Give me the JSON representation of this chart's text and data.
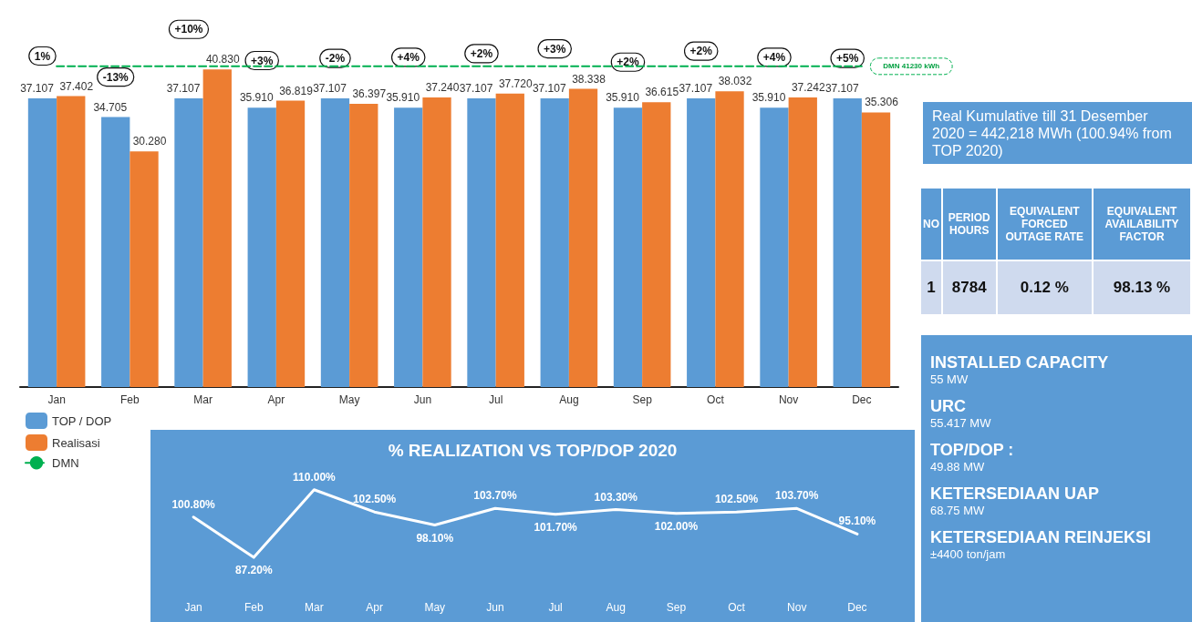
{
  "chart_data": [
    {
      "type": "bar",
      "categories": [
        "Jan",
        "Feb",
        "Mar",
        "Apr",
        "May",
        "Jun",
        "Jul",
        "Aug",
        "Sep",
        "Oct",
        "Nov",
        "Dec"
      ],
      "series": [
        {
          "name": "TOP / DOP",
          "color": "#5b9bd5",
          "values": [
            37.107,
            34.705,
            37.107,
            35.91,
            37.107,
            35.91,
            37.107,
            37.107,
            35.91,
            37.107,
            35.91,
            37.107
          ],
          "value_labels": [
            "37.107",
            "34.705",
            "37.107",
            "35.910",
            "37.107",
            "35.910",
            "37.107",
            "37.107",
            "35.910",
            "37.107",
            "35.910",
            "37.107"
          ]
        },
        {
          "name": "Realisasi",
          "color": "#ed7d31",
          "values": [
            37.402,
            30.28,
            40.83,
            36.819,
            36.397,
            37.24,
            37.72,
            38.338,
            36.615,
            38.032,
            37.242,
            35.306
          ],
          "value_labels": [
            "37.402",
            "30.280",
            "40.830",
            "36.819",
            "36.397",
            "37.240",
            "37.720",
            "38.338",
            "36.615",
            "38.032",
            "37.242",
            "35.306"
          ]
        },
        {
          "name": "DMN",
          "type": "line",
          "color": "#00b050",
          "line_style": "dashed",
          "marker": "none",
          "values": [
            41.23,
            41.23,
            41.23,
            41.23,
            41.23,
            41.23,
            41.23,
            41.23,
            41.23,
            41.23,
            41.23,
            41.23
          ]
        }
      ],
      "annotations": [
        "1%",
        "-13%",
        "+10%",
        "+3%",
        "-2%",
        "+4%",
        "+2%",
        "+3%",
        "+2%",
        "+2%",
        "+4%",
        "+5%",
        {
          "text": "DMN 41230 kWh",
          "x": "Dec",
          "y": 41.23
        }
      ],
      "legend": "bottom left",
      "grid": false,
      "tick_labels": "x"
    },
    {
      "type": "line",
      "title": "% REALIZATION VS TOP/DOP 2020",
      "categories": [
        "Jan",
        "Feb",
        "Mar",
        "Apr",
        "May",
        "Jun",
        "Jul",
        "Aug",
        "Sep",
        "Oct",
        "Nov",
        "Dec"
      ],
      "series": [
        {
          "color": "#ffffff",
          "values": [
            100.8,
            87.2,
            110,
            102.5,
            98.1,
            103.7,
            101.7,
            103.3,
            102,
            102.5,
            103.7,
            95.1
          ],
          "value_labels": [
            "100.80%",
            "87.20%",
            "110.00%",
            "102.50%",
            "98.10%",
            "103.70%",
            "101.70%",
            "103.30%",
            "102.00%",
            "102.50%",
            "103.70%",
            "95.10%"
          ]
        }
      ],
      "marker": "none",
      "grid": false,
      "tick_labels": "x"
    },
    {
      "type": "other",
      "annotations": [
        "Real Kumulative till  31 Desember 2020 = 442,218 MWh (100.94%  from TOP 2020)"
      ]
    },
    {
      "type": "other",
      "categories": [
        "NO",
        "PERIOD HOURS",
        "EQUIVALENT FORCED OUTAGE RATE",
        "EQUIVALENT AVAILABILITY FACTOR"
      ],
      "cell_labels": [
        [
          "1",
          "8784",
          "0.12 %",
          "98.13 %"
        ]
      ]
    },
    {
      "type": "other",
      "annotations": [
        "INSTALLED CAPACITY",
        "55 MW",
        "URC",
        "55.417 MW",
        "TOP/DOP :",
        "49.88 MW",
        "KETERSEDIAAN UAP",
        "68.75 MW",
        "KETERSEDIAAN REINJEKSI",
        "±4400 ton/jam"
      ]
    }
  ]
}
